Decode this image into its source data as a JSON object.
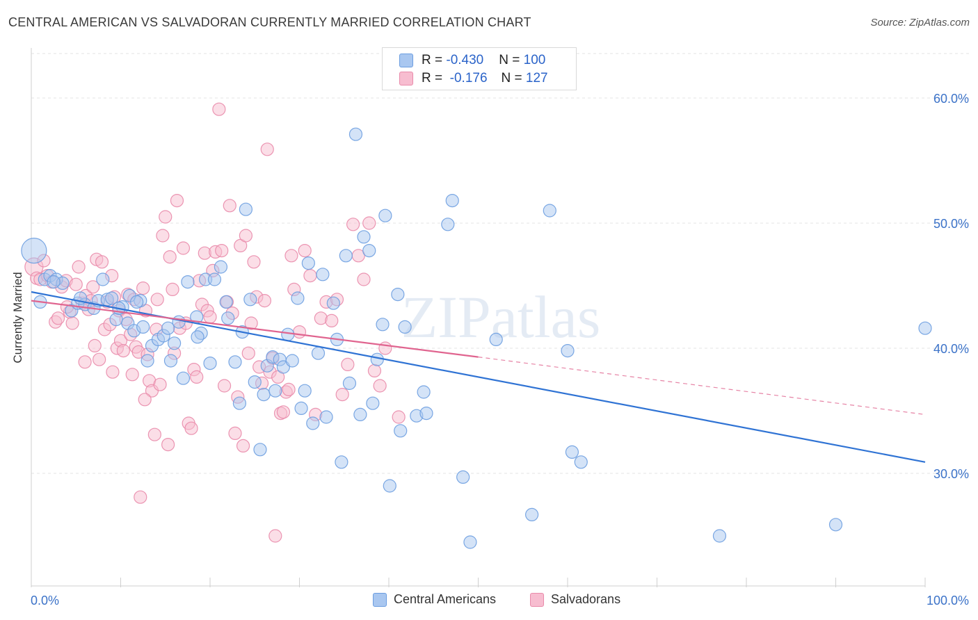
{
  "title": "CENTRAL AMERICAN VS SALVADORAN CURRENTLY MARRIED CORRELATION CHART",
  "source": "Source: ZipAtlas.com",
  "watermark": "ZIPatlas",
  "colors": {
    "blue_fill": "#a9c7f0",
    "blue_stroke": "#6b9de0",
    "blue_line": "#2f73d4",
    "pink_fill": "#f7bdd0",
    "pink_stroke": "#e98aaa",
    "pink_line": "#e0648f",
    "tick_text": "#3b72c8"
  },
  "legend": {
    "rows": [
      {
        "r_label": "R = ",
        "r_value": "-0.430",
        "n_label": "N = ",
        "n_value": "100",
        "swatch": "blue"
      },
      {
        "r_label": "R = ",
        "r_value": " -0.176",
        "n_label": "N = ",
        "n_value": "127",
        "swatch": "pink"
      }
    ]
  },
  "bottom_legend": [
    "Central Americans",
    "Salvadorans"
  ],
  "chart_data": {
    "type": "scatter",
    "title": "CENTRAL AMERICAN VS SALVADORAN CURRENTLY MARRIED CORRELATION CHART",
    "xlabel": "",
    "ylabel": "Currently Married",
    "xlim": [
      0,
      100
    ],
    "ylim": [
      21,
      64
    ],
    "x_tick_labels": [
      "0.0%",
      "100.0%"
    ],
    "y_ticks": [
      30,
      40,
      50,
      60
    ],
    "y_tick_labels": [
      "30.0%",
      "40.0%",
      "50.0%",
      "60.0%"
    ],
    "grid": true,
    "series": [
      {
        "name": "Central Americans",
        "color": "blue",
        "trend": {
          "x": [
            0,
            100
          ],
          "y": [
            44.5,
            30.9
          ]
        },
        "points": [
          [
            0.3,
            47.8,
            3
          ],
          [
            1.5,
            45.5,
            1
          ],
          [
            2.1,
            45.8,
            1
          ],
          [
            2.8,
            45.5,
            1
          ],
          [
            3.5,
            45.2,
            1
          ],
          [
            1.0,
            43.7,
            1
          ],
          [
            4.5,
            43.0,
            1
          ],
          [
            5.2,
            43.6,
            1
          ],
          [
            6.0,
            43.5,
            1
          ],
          [
            7.0,
            43.2,
            1
          ],
          [
            7.5,
            43.8,
            1
          ],
          [
            8.0,
            45.5,
            1
          ],
          [
            8.5,
            43.9,
            1
          ],
          [
            9.0,
            44.0,
            1
          ],
          [
            9.5,
            42.3,
            1
          ],
          [
            10.2,
            43.3,
            1
          ],
          [
            10.8,
            42.0,
            1
          ],
          [
            11.0,
            44.2,
            1
          ],
          [
            11.5,
            41.4,
            1
          ],
          [
            12.2,
            43.8,
            1
          ],
          [
            12.5,
            41.7,
            1
          ],
          [
            13.0,
            39.0,
            1
          ],
          [
            13.5,
            40.2,
            1
          ],
          [
            14.2,
            40.7,
            1
          ],
          [
            14.8,
            41.0,
            1
          ],
          [
            15.3,
            41.6,
            1
          ],
          [
            16.0,
            40.4,
            1
          ],
          [
            16.5,
            42.1,
            1
          ],
          [
            17.5,
            45.3,
            1
          ],
          [
            18.5,
            42.5,
            1
          ],
          [
            19.0,
            41.2,
            1
          ],
          [
            19.5,
            45.5,
            1
          ],
          [
            20.0,
            38.8,
            1
          ],
          [
            20.5,
            45.5,
            1
          ],
          [
            21.2,
            46.5,
            1
          ],
          [
            21.8,
            43.7,
            1
          ],
          [
            22.0,
            42.4,
            1
          ],
          [
            22.8,
            38.9,
            1
          ],
          [
            23.3,
            35.6,
            1
          ],
          [
            23.6,
            41.3,
            1
          ],
          [
            24.0,
            51.1,
            1
          ],
          [
            24.5,
            43.9,
            1
          ],
          [
            25.0,
            37.3,
            1
          ],
          [
            25.6,
            31.9,
            1
          ],
          [
            26.0,
            36.3,
            1
          ],
          [
            26.4,
            38.6,
            1
          ],
          [
            27.0,
            39.3,
            1
          ],
          [
            27.3,
            36.6,
            1
          ],
          [
            27.8,
            39.1,
            1
          ],
          [
            28.2,
            38.5,
            1
          ],
          [
            28.7,
            41.1,
            1
          ],
          [
            29.2,
            39.0,
            1
          ],
          [
            29.8,
            44.0,
            1
          ],
          [
            30.2,
            35.2,
            1
          ],
          [
            30.6,
            36.6,
            1
          ],
          [
            31.0,
            46.8,
            1
          ],
          [
            31.5,
            34.0,
            1
          ],
          [
            32.1,
            39.6,
            1
          ],
          [
            32.6,
            45.9,
            1
          ],
          [
            33.0,
            34.5,
            1
          ],
          [
            33.8,
            43.6,
            1
          ],
          [
            34.2,
            40.7,
            1
          ],
          [
            34.7,
            30.9,
            1
          ],
          [
            35.2,
            47.4,
            1
          ],
          [
            35.6,
            37.2,
            1
          ],
          [
            36.3,
            57.1,
            1
          ],
          [
            36.8,
            34.7,
            1
          ],
          [
            37.2,
            48.9,
            1
          ],
          [
            37.8,
            47.8,
            1
          ],
          [
            38.2,
            35.6,
            1
          ],
          [
            38.7,
            39.1,
            1
          ],
          [
            39.3,
            41.9,
            1
          ],
          [
            39.6,
            50.6,
            1
          ],
          [
            40.1,
            29.0,
            1
          ],
          [
            41.0,
            44.3,
            1
          ],
          [
            41.3,
            33.4,
            1
          ],
          [
            41.8,
            41.7,
            1
          ],
          [
            43.1,
            34.6,
            1
          ],
          [
            43.9,
            36.5,
            1
          ],
          [
            44.2,
            34.8,
            1
          ],
          [
            46.6,
            49.9,
            1
          ],
          [
            47.1,
            51.8,
            1
          ],
          [
            48.3,
            29.7,
            1
          ],
          [
            49.1,
            24.5,
            1
          ],
          [
            52.0,
            40.7,
            1
          ],
          [
            56.0,
            26.7,
            1
          ],
          [
            58.0,
            51.0,
            1
          ],
          [
            60.0,
            39.8,
            1
          ],
          [
            60.5,
            31.7,
            1
          ],
          [
            61.5,
            30.9,
            1
          ],
          [
            77.0,
            25.0,
            1
          ],
          [
            90.0,
            25.9,
            1
          ],
          [
            100.0,
            41.6,
            1
          ],
          [
            5.5,
            44.0,
            1
          ],
          [
            9.8,
            43.2,
            1
          ],
          [
            11.8,
            43.7,
            1
          ],
          [
            15.6,
            39.0,
            1
          ],
          [
            17.0,
            37.6,
            1
          ],
          [
            18.6,
            40.9,
            1
          ],
          [
            2.5,
            45.3,
            1
          ]
        ]
      },
      {
        "name": "Salvadorans",
        "color": "pink",
        "trend": {
          "x": [
            0,
            50
          ],
          "y": [
            43.8,
            39.3
          ]
        },
        "trend_extension": {
          "x": [
            50,
            100
          ],
          "y": [
            39.3,
            34.7
          ]
        },
        "points": [
          [
            0.3,
            46.5,
            2
          ],
          [
            0.6,
            45.6,
            1
          ],
          [
            1.0,
            45.5,
            1
          ],
          [
            1.4,
            47.0,
            1
          ],
          [
            1.8,
            45.8,
            1
          ],
          [
            2.3,
            45.3,
            1
          ],
          [
            2.7,
            42.1,
            1
          ],
          [
            3.0,
            42.4,
            1
          ],
          [
            3.4,
            44.9,
            1
          ],
          [
            3.9,
            45.4,
            1
          ],
          [
            4.3,
            42.9,
            1
          ],
          [
            4.6,
            42.0,
            1
          ],
          [
            5.0,
            45.1,
            1
          ],
          [
            5.3,
            46.5,
            1
          ],
          [
            5.7,
            43.6,
            1
          ],
          [
            6.1,
            44.2,
            1
          ],
          [
            6.4,
            43.1,
            1
          ],
          [
            6.7,
            43.8,
            1
          ],
          [
            6.9,
            44.9,
            1
          ],
          [
            7.3,
            47.1,
            1
          ],
          [
            7.6,
            39.1,
            1
          ],
          [
            7.9,
            46.9,
            1
          ],
          [
            8.2,
            41.5,
            1
          ],
          [
            8.5,
            43.7,
            1
          ],
          [
            8.8,
            41.9,
            1
          ],
          [
            9.1,
            38.1,
            1
          ],
          [
            9.3,
            44.1,
            1
          ],
          [
            9.6,
            40.0,
            1
          ],
          [
            9.8,
            43.0,
            1
          ],
          [
            10.0,
            40.6,
            1
          ],
          [
            10.3,
            39.8,
            1
          ],
          [
            10.6,
            42.3,
            1
          ],
          [
            10.8,
            44.3,
            1
          ],
          [
            11.1,
            41.1,
            1
          ],
          [
            11.3,
            37.9,
            1
          ],
          [
            11.5,
            43.9,
            1
          ],
          [
            11.7,
            40.1,
            1
          ],
          [
            12.0,
            39.7,
            1
          ],
          [
            12.2,
            28.1,
            1
          ],
          [
            12.5,
            44.8,
            1
          ],
          [
            12.8,
            43.0,
            1
          ],
          [
            13.0,
            39.5,
            1
          ],
          [
            13.2,
            37.4,
            1
          ],
          [
            13.5,
            36.6,
            1
          ],
          [
            13.8,
            33.1,
            1
          ],
          [
            14.1,
            43.9,
            1
          ],
          [
            14.4,
            37.1,
            1
          ],
          [
            14.7,
            49.0,
            1
          ],
          [
            15.0,
            50.5,
            1
          ],
          [
            15.3,
            32.3,
            1
          ],
          [
            15.5,
            47.3,
            1
          ],
          [
            15.8,
            44.7,
            1
          ],
          [
            16.0,
            39.6,
            1
          ],
          [
            16.3,
            51.8,
            1
          ],
          [
            16.6,
            41.6,
            1
          ],
          [
            17.0,
            48.0,
            1
          ],
          [
            17.3,
            42.0,
            1
          ],
          [
            17.6,
            34.0,
            1
          ],
          [
            17.9,
            33.6,
            1
          ],
          [
            18.2,
            38.3,
            1
          ],
          [
            18.5,
            37.7,
            1
          ],
          [
            18.8,
            45.4,
            1
          ],
          [
            19.1,
            43.5,
            1
          ],
          [
            19.4,
            47.6,
            1
          ],
          [
            19.7,
            43.0,
            1
          ],
          [
            20.0,
            42.5,
            1
          ],
          [
            20.3,
            46.2,
            1
          ],
          [
            20.6,
            47.7,
            1
          ],
          [
            21.0,
            59.1,
            1
          ],
          [
            21.3,
            47.8,
            1
          ],
          [
            21.6,
            37.0,
            1
          ],
          [
            21.9,
            43.7,
            1
          ],
          [
            22.2,
            51.4,
            1
          ],
          [
            22.5,
            42.8,
            1
          ],
          [
            22.8,
            33.2,
            1
          ],
          [
            23.1,
            36.1,
            1
          ],
          [
            23.4,
            48.2,
            1
          ],
          [
            23.7,
            32.2,
            1
          ],
          [
            24.0,
            49.0,
            1
          ],
          [
            24.3,
            39.6,
            1
          ],
          [
            24.6,
            42.0,
            1
          ],
          [
            24.9,
            46.9,
            1
          ],
          [
            25.2,
            44.1,
            1
          ],
          [
            25.5,
            38.5,
            1
          ],
          [
            25.8,
            37.2,
            1
          ],
          [
            26.1,
            43.8,
            1
          ],
          [
            26.4,
            55.9,
            1
          ],
          [
            26.7,
            38.1,
            1
          ],
          [
            27.0,
            39.2,
            1
          ],
          [
            27.3,
            25.0,
            1
          ],
          [
            27.6,
            37.7,
            1
          ],
          [
            27.9,
            34.8,
            1
          ],
          [
            28.2,
            34.9,
            1
          ],
          [
            28.5,
            36.5,
            1
          ],
          [
            28.8,
            36.7,
            1
          ],
          [
            29.1,
            47.4,
            1
          ],
          [
            29.4,
            44.7,
            1
          ],
          [
            30.0,
            41.3,
            1
          ],
          [
            30.6,
            47.8,
            1
          ],
          [
            31.2,
            45.8,
            1
          ],
          [
            31.8,
            34.7,
            1
          ],
          [
            32.4,
            42.4,
            1
          ],
          [
            33.0,
            43.7,
            1
          ],
          [
            33.6,
            42.2,
            1
          ],
          [
            34.2,
            43.9,
            1
          ],
          [
            34.8,
            36.3,
            1
          ],
          [
            35.4,
            38.7,
            1
          ],
          [
            36.0,
            49.9,
            1
          ],
          [
            36.6,
            47.4,
            1
          ],
          [
            37.2,
            45.5,
            1
          ],
          [
            37.8,
            50.0,
            1
          ],
          [
            38.4,
            38.2,
            1
          ],
          [
            39.0,
            37.0,
            1
          ],
          [
            39.6,
            40.0,
            1
          ],
          [
            41.1,
            34.5,
            1
          ],
          [
            4.0,
            43.3,
            1
          ],
          [
            6.0,
            38.9,
            1
          ],
          [
            7.1,
            40.2,
            1
          ],
          [
            9.0,
            45.8,
            1
          ],
          [
            12.7,
            35.9,
            1
          ],
          [
            14.0,
            41.5,
            1
          ]
        ]
      }
    ]
  }
}
